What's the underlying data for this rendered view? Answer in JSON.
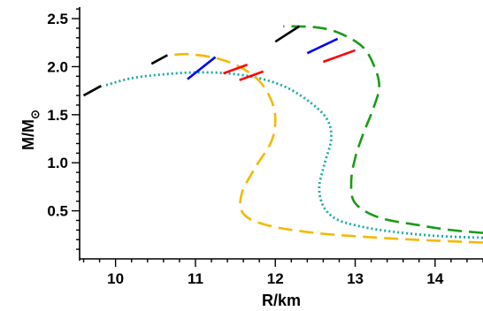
{
  "chart_data": {
    "type": "line",
    "xlabel": "R/km",
    "ylabel_main": "M/M",
    "ylabel_sub": "⊙",
    "xlim": [
      9.55,
      14.6
    ],
    "ylim": [
      0.0,
      2.62
    ],
    "xticks": [
      10,
      11,
      12,
      13,
      14
    ],
    "xtick_labels": [
      "10",
      "11",
      "12",
      "13",
      "14"
    ],
    "yticks": [
      0.5,
      1.0,
      1.5,
      2.0,
      2.5
    ],
    "ytick_labels": [
      "0.5",
      "1.0",
      "1.5",
      "2.0",
      "2.5"
    ],
    "grid": false,
    "series": [
      {
        "style": "dotted",
        "color": "#1aa9a9",
        "points": [
          [
            14.6,
            0.22
          ],
          [
            14.0,
            0.24
          ],
          [
            13.4,
            0.29
          ],
          [
            13.0,
            0.35
          ],
          [
            12.75,
            0.42
          ],
          [
            12.6,
            0.55
          ],
          [
            12.55,
            0.75
          ],
          [
            12.62,
            1.0
          ],
          [
            12.7,
            1.25
          ],
          [
            12.65,
            1.45
          ],
          [
            12.45,
            1.62
          ],
          [
            12.15,
            1.78
          ],
          [
            11.8,
            1.88
          ],
          [
            11.4,
            1.93
          ],
          [
            11.0,
            1.94
          ],
          [
            10.6,
            1.92
          ],
          [
            10.2,
            1.88
          ],
          [
            9.85,
            1.8
          ]
        ]
      },
      {
        "style": "dashed",
        "color": "#f5b800",
        "points": [
          [
            14.6,
            0.17
          ],
          [
            14.0,
            0.19
          ],
          [
            13.3,
            0.22
          ],
          [
            12.5,
            0.27
          ],
          [
            11.9,
            0.35
          ],
          [
            11.6,
            0.47
          ],
          [
            11.58,
            0.68
          ],
          [
            11.75,
            0.95
          ],
          [
            11.95,
            1.22
          ],
          [
            12.0,
            1.45
          ],
          [
            11.95,
            1.65
          ],
          [
            11.8,
            1.85
          ],
          [
            11.55,
            2.0
          ],
          [
            11.25,
            2.09
          ],
          [
            10.9,
            2.13
          ],
          [
            10.7,
            2.12
          ]
        ]
      },
      {
        "style": "dashed",
        "color": "#1a9a1a",
        "points": [
          [
            14.6,
            0.27
          ],
          [
            14.2,
            0.3
          ],
          [
            13.8,
            0.35
          ],
          [
            13.3,
            0.43
          ],
          [
            13.0,
            0.58
          ],
          [
            12.95,
            0.8
          ],
          [
            13.0,
            1.05
          ],
          [
            13.1,
            1.3
          ],
          [
            13.22,
            1.55
          ],
          [
            13.3,
            1.78
          ],
          [
            13.25,
            1.98
          ],
          [
            13.1,
            2.2
          ],
          [
            12.8,
            2.35
          ],
          [
            12.5,
            2.41
          ],
          [
            12.1,
            2.42
          ]
        ]
      },
      {
        "style": "solid",
        "color": "#000000",
        "segments": [
          [
            [
              9.6,
              1.7
            ],
            [
              9.82,
              1.8
            ]
          ],
          [
            [
              10.45,
              2.03
            ],
            [
              10.65,
              2.12
            ]
          ],
          [
            [
              12.0,
              2.26
            ],
            [
              12.3,
              2.42
            ]
          ]
        ]
      },
      {
        "style": "solid",
        "color": "#0000ff",
        "segments": [
          [
            [
              10.9,
              1.87
            ],
            [
              11.25,
              2.1
            ]
          ],
          [
            [
              12.4,
              2.14
            ],
            [
              12.78,
              2.29
            ]
          ]
        ]
      },
      {
        "style": "solid",
        "color": "#ff0000",
        "segments": [
          [
            [
              11.35,
              1.93
            ],
            [
              11.65,
              2.02
            ]
          ],
          [
            [
              11.55,
              1.86
            ],
            [
              11.85,
              1.95
            ]
          ],
          [
            [
              12.6,
              2.05
            ],
            [
              13.0,
              2.17
            ]
          ]
        ]
      }
    ]
  }
}
